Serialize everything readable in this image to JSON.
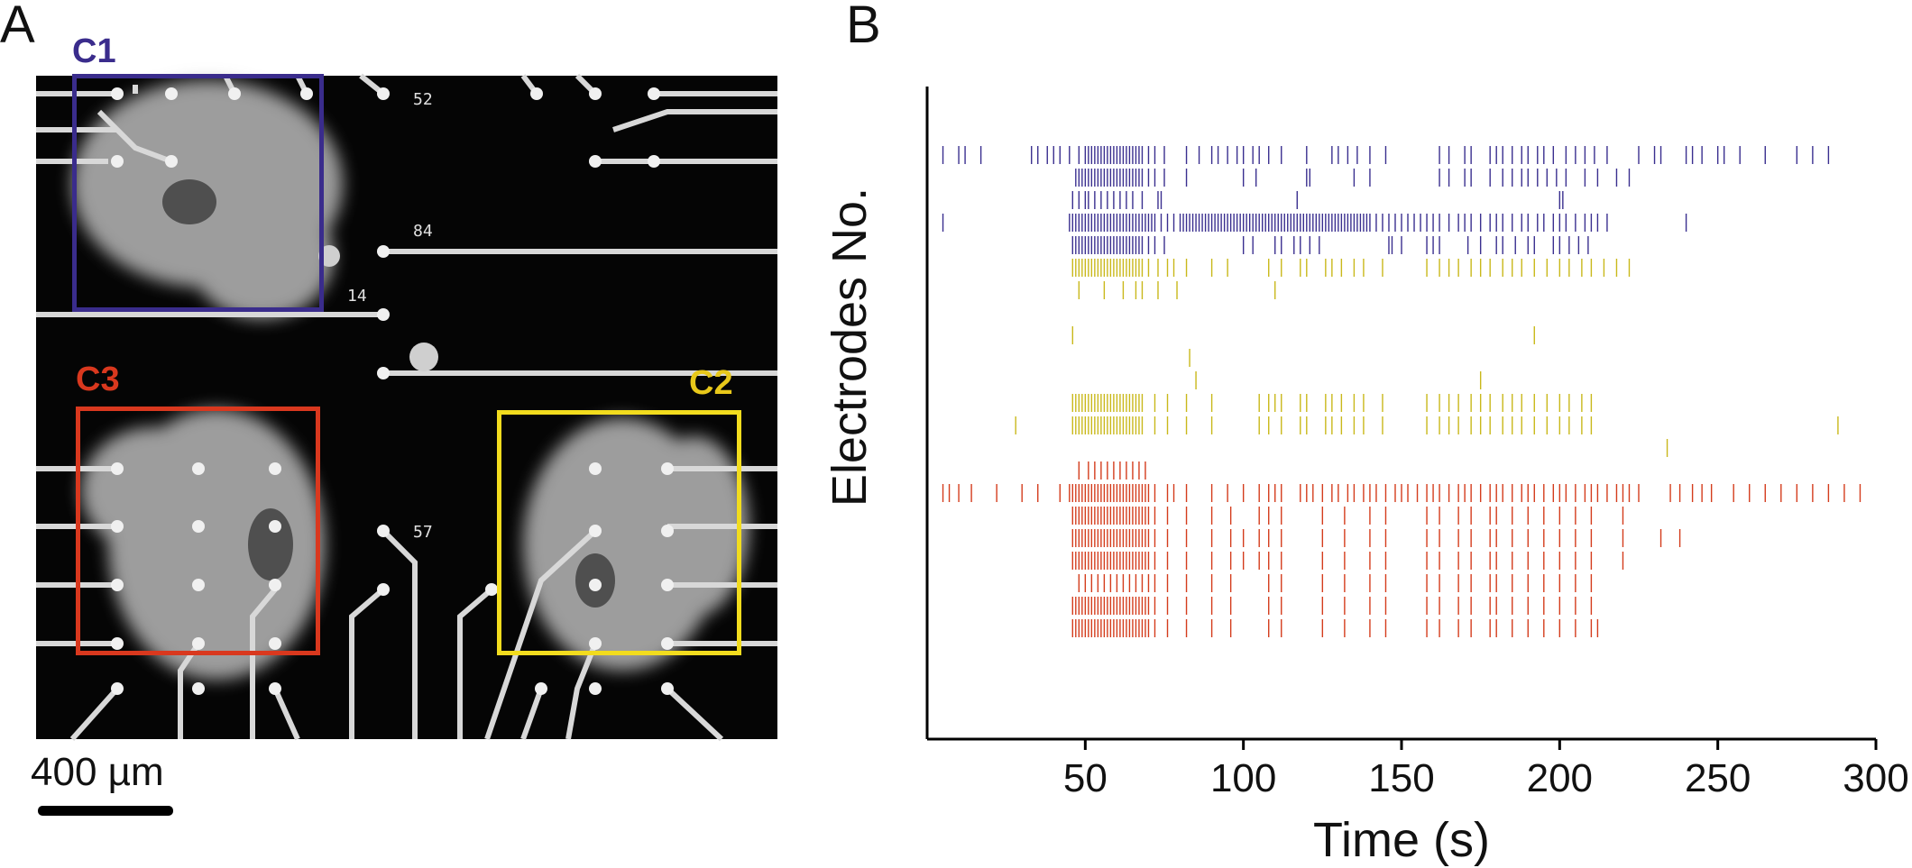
{
  "panels": {
    "a": "A",
    "b": "B"
  },
  "micrograph": {
    "electrode_numbers": [
      "52",
      "84",
      "14",
      "57"
    ],
    "scale_bar_label": "400 µm",
    "clusters": [
      {
        "id": "c1",
        "label": "C1",
        "color": "#3a2c8c"
      },
      {
        "id": "c2",
        "label": "C2",
        "color": "#f2dc1e"
      },
      {
        "id": "c3",
        "label": "C3",
        "color": "#d9381e"
      }
    ]
  },
  "chart_data": {
    "type": "raster",
    "xlabel": "Time (s)",
    "ylabel": "Electrodes No.",
    "xlim": [
      0,
      300
    ],
    "xticks": [
      50,
      100,
      150,
      200,
      250,
      300
    ],
    "colors": {
      "C1": "#3a2f8f",
      "C2": "#c9b81a",
      "C3": "#d43c1c"
    },
    "rows": [
      {
        "cluster": "C1",
        "spikes": [
          5,
          10,
          12,
          17,
          33,
          35,
          38,
          40,
          42,
          45,
          48,
          50,
          51,
          52,
          53,
          54,
          55,
          56,
          57,
          58,
          59,
          60,
          61,
          62,
          63,
          64,
          65,
          66,
          67,
          68,
          70,
          72,
          75,
          82,
          86,
          90,
          92,
          95,
          98,
          100,
          103,
          105,
          108,
          112,
          120,
          128,
          130,
          133,
          136,
          140,
          145,
          162,
          165,
          170,
          172,
          178,
          180,
          182,
          185,
          188,
          190,
          193,
          195,
          198,
          202,
          205,
          208,
          211,
          215,
          225,
          230,
          232,
          240,
          242,
          245,
          250,
          252,
          257,
          265,
          275,
          280,
          285
        ]
      },
      {
        "cluster": "C1",
        "spikes": [
          47,
          48,
          49,
          50,
          51,
          52,
          53,
          54,
          55,
          56,
          57,
          58,
          59,
          60,
          61,
          62,
          63,
          64,
          65,
          66,
          67,
          68,
          70,
          72,
          75,
          82,
          100,
          104,
          120,
          121,
          135,
          140,
          162,
          165,
          170,
          172,
          178,
          182,
          185,
          188,
          190,
          193,
          196,
          199,
          202,
          208,
          212,
          218,
          222
        ]
      },
      {
        "cluster": "C1",
        "spikes": [
          46,
          48,
          50,
          51,
          53,
          55,
          57,
          59,
          61,
          63,
          65,
          68,
          73,
          74,
          117,
          200,
          201
        ]
      },
      {
        "cluster": "C1",
        "spikes": [
          5,
          45,
          46,
          47,
          48,
          49,
          50,
          51,
          52,
          53,
          54,
          55,
          56,
          57,
          58,
          59,
          60,
          61,
          62,
          63,
          64,
          65,
          66,
          67,
          68,
          69,
          70,
          71,
          72,
          74,
          76,
          78,
          80,
          81,
          82,
          83,
          84,
          85,
          86,
          87,
          88,
          89,
          90,
          91,
          92,
          93,
          94,
          95,
          96,
          97,
          98,
          99,
          100,
          101,
          102,
          103,
          104,
          105,
          106,
          107,
          108,
          109,
          110,
          111,
          112,
          113,
          114,
          115,
          116,
          117,
          118,
          119,
          120,
          121,
          122,
          123,
          124,
          125,
          126,
          127,
          128,
          129,
          130,
          131,
          132,
          133,
          134,
          135,
          136,
          137,
          138,
          139,
          140,
          142,
          144,
          146,
          148,
          150,
          152,
          154,
          156,
          158,
          160,
          162,
          165,
          168,
          170,
          172,
          175,
          178,
          180,
          182,
          185,
          188,
          190,
          193,
          195,
          198,
          200,
          202,
          205,
          208,
          210,
          212,
          215,
          240
        ]
      },
      {
        "cluster": "C1",
        "spikes": [
          46,
          47,
          48,
          49,
          50,
          51,
          52,
          53,
          54,
          55,
          56,
          57,
          58,
          59,
          60,
          61,
          62,
          63,
          64,
          65,
          66,
          67,
          68,
          70,
          72,
          75,
          100,
          103,
          110,
          112,
          116,
          118,
          121,
          124,
          146,
          147,
          150,
          158,
          160,
          162,
          171,
          175,
          180,
          182,
          186,
          190,
          192,
          198,
          200,
          203,
          206,
          209
        ]
      },
      {
        "cluster": "C2",
        "spikes": [
          46,
          47,
          48,
          49,
          50,
          51,
          52,
          53,
          54,
          55,
          56,
          57,
          58,
          59,
          60,
          61,
          62,
          63,
          64,
          65,
          66,
          67,
          68,
          70,
          73,
          76,
          78,
          82,
          90,
          95,
          108,
          112,
          118,
          120,
          126,
          128,
          131,
          135,
          138,
          144,
          158,
          162,
          165,
          168,
          172,
          175,
          178,
          182,
          185,
          188,
          192,
          196,
          200,
          203,
          207,
          210,
          214,
          218,
          222
        ]
      },
      {
        "cluster": "C2",
        "spikes": [
          48,
          56,
          62,
          66,
          68,
          73,
          79,
          110
        ]
      },
      {
        "cluster": "C2",
        "spikes": []
      },
      {
        "cluster": "C2",
        "spikes": [
          46,
          192
        ]
      },
      {
        "cluster": "C2",
        "spikes": [
          83
        ]
      },
      {
        "cluster": "C2",
        "spikes": [
          85,
          175
        ]
      },
      {
        "cluster": "C2",
        "spikes": [
          46,
          47,
          48,
          49,
          50,
          51,
          52,
          53,
          54,
          55,
          56,
          57,
          58,
          59,
          60,
          61,
          62,
          63,
          64,
          65,
          66,
          67,
          68,
          72,
          76,
          82,
          90,
          105,
          108,
          110,
          112,
          118,
          120,
          126,
          128,
          131,
          135,
          138,
          144,
          158,
          162,
          165,
          168,
          172,
          175,
          178,
          182,
          185,
          188,
          192,
          196,
          200,
          203,
          207,
          210
        ]
      },
      {
        "cluster": "C2",
        "spikes": [
          28,
          46,
          47,
          48,
          49,
          50,
          51,
          52,
          53,
          54,
          55,
          56,
          57,
          58,
          59,
          60,
          61,
          62,
          63,
          64,
          65,
          66,
          67,
          68,
          72,
          76,
          82,
          90,
          105,
          108,
          112,
          118,
          120,
          126,
          128,
          131,
          135,
          138,
          144,
          158,
          162,
          165,
          168,
          172,
          175,
          178,
          182,
          185,
          188,
          192,
          196,
          200,
          203,
          207,
          210,
          288
        ]
      },
      {
        "cluster": "C2",
        "spikes": [
          234
        ]
      },
      {
        "cluster": "C3",
        "spikes": [
          48,
          51,
          53,
          55,
          57,
          59,
          61,
          63,
          65,
          67,
          69
        ]
      },
      {
        "cluster": "C3",
        "spikes": [
          5,
          7,
          10,
          14,
          22,
          30,
          35,
          42,
          45,
          46,
          47,
          48,
          49,
          50,
          51,
          52,
          53,
          54,
          55,
          56,
          57,
          58,
          59,
          60,
          61,
          62,
          63,
          64,
          65,
          66,
          67,
          68,
          69,
          70,
          72,
          76,
          78,
          82,
          90,
          95,
          100,
          105,
          108,
          110,
          112,
          118,
          120,
          122,
          125,
          128,
          130,
          133,
          135,
          138,
          140,
          142,
          145,
          148,
          150,
          152,
          155,
          158,
          160,
          162,
          165,
          168,
          170,
          172,
          175,
          178,
          180,
          182,
          185,
          188,
          190,
          192,
          195,
          198,
          200,
          202,
          205,
          208,
          210,
          212,
          215,
          218,
          220,
          222,
          225,
          235,
          238,
          242,
          245,
          248,
          255,
          260,
          265,
          270,
          275,
          280,
          285,
          290,
          295
        ]
      },
      {
        "cluster": "C3",
        "spikes": [
          46,
          47,
          48,
          49,
          50,
          51,
          52,
          53,
          54,
          55,
          56,
          57,
          58,
          59,
          60,
          61,
          62,
          63,
          64,
          65,
          66,
          67,
          68,
          69,
          70,
          72,
          76,
          82,
          90,
          96,
          105,
          108,
          112,
          125,
          132,
          140,
          145,
          158,
          162,
          168,
          172,
          178,
          180,
          185,
          190,
          195,
          200,
          205,
          210,
          220
        ]
      },
      {
        "cluster": "C3",
        "spikes": [
          46,
          47,
          48,
          49,
          50,
          51,
          52,
          53,
          54,
          55,
          56,
          57,
          58,
          59,
          60,
          61,
          62,
          63,
          64,
          65,
          66,
          67,
          68,
          69,
          70,
          72,
          76,
          82,
          90,
          96,
          100,
          105,
          108,
          112,
          125,
          132,
          140,
          145,
          158,
          162,
          168,
          172,
          178,
          180,
          185,
          190,
          195,
          200,
          205,
          210,
          220,
          232,
          238
        ]
      },
      {
        "cluster": "C3",
        "spikes": [
          46,
          47,
          48,
          49,
          50,
          51,
          52,
          53,
          54,
          55,
          56,
          57,
          58,
          59,
          60,
          61,
          62,
          63,
          64,
          65,
          66,
          67,
          68,
          69,
          70,
          72,
          76,
          82,
          90,
          96,
          100,
          105,
          108,
          112,
          125,
          132,
          140,
          145,
          158,
          162,
          168,
          172,
          178,
          180,
          185,
          190,
          195,
          200,
          205,
          210,
          220
        ]
      },
      {
        "cluster": "C3",
        "spikes": [
          48,
          50,
          52,
          54,
          56,
          58,
          60,
          62,
          64,
          66,
          68,
          70,
          72,
          76,
          82,
          90,
          96,
          108,
          112,
          125,
          132,
          140,
          145,
          158,
          162,
          168,
          172,
          178,
          180,
          185,
          190,
          195,
          200,
          205,
          210
        ]
      },
      {
        "cluster": "C3",
        "spikes": [
          46,
          47,
          48,
          49,
          50,
          51,
          52,
          53,
          54,
          55,
          56,
          57,
          58,
          59,
          60,
          61,
          62,
          63,
          64,
          65,
          66,
          67,
          68,
          69,
          70,
          72,
          76,
          82,
          90,
          96,
          108,
          112,
          125,
          132,
          140,
          145,
          158,
          162,
          168,
          172,
          178,
          180,
          185,
          190,
          195,
          200,
          205,
          210
        ]
      },
      {
        "cluster": "C3",
        "spikes": [
          46,
          47,
          48,
          49,
          50,
          51,
          52,
          53,
          54,
          55,
          56,
          57,
          58,
          59,
          60,
          61,
          62,
          63,
          64,
          65,
          66,
          67,
          68,
          69,
          70,
          72,
          76,
          82,
          90,
          96,
          108,
          112,
          125,
          132,
          140,
          145,
          158,
          162,
          168,
          172,
          178,
          180,
          185,
          190,
          195,
          200,
          205,
          210,
          212
        ]
      }
    ]
  }
}
